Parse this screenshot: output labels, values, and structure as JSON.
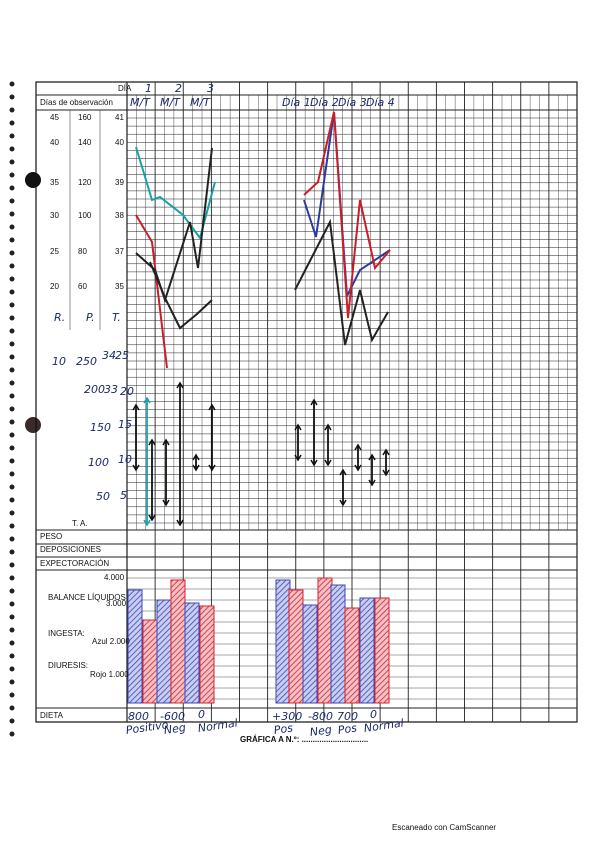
{
  "header": {
    "dia_label": "DÍA",
    "observacion_label": "Días de observación",
    "days": [
      "1",
      "2",
      "3"
    ],
    "shifts": [
      "M/T",
      "M/T",
      "M/T"
    ],
    "days_right": [
      "Día 1",
      "Día 2",
      "Día 3",
      "Día 4"
    ]
  },
  "scale": {
    "rows": [
      [
        "45",
        "160",
        "41"
      ],
      [
        "40",
        "140",
        "40"
      ],
      [
        "35",
        "120",
        "39"
      ],
      [
        "30",
        "100",
        "38"
      ],
      [
        "25",
        "80",
        "37"
      ],
      [
        "20",
        "60",
        "35"
      ]
    ],
    "axis_heads": [
      "R.",
      "P.",
      "T."
    ],
    "ta_values": [
      "10",
      "250",
      "34",
      "200",
      "33",
      "150",
      "100",
      "50"
    ],
    "ta_small": [
      "25",
      "20",
      "15",
      "10",
      "5"
    ],
    "ta_label": "T. A."
  },
  "rows": [
    "PESO",
    "DEPOSICIONES",
    "EXPECTORACIÓN"
  ],
  "balance": {
    "top": "4.000",
    "title": "BALANCE LÍQUIDOS",
    "mid": "3.000",
    "ingesta": "INGESTA:",
    "azul": "Azul 2.000",
    "diuresis": "DIURESIS:",
    "rojo": "Rojo 1.000"
  },
  "dieta": {
    "label": "DIETA",
    "values": [
      "800",
      "-600",
      "0",
      "+300",
      "-800",
      "700",
      "0"
    ],
    "notes": [
      "Positivo",
      "Neg",
      "Normal",
      "Pos",
      "Neg",
      "Pos",
      "Normal"
    ]
  },
  "footer": "GRÁFICA A N.º: ..............................",
  "scanner": "Escaneado con CamScanner"
}
